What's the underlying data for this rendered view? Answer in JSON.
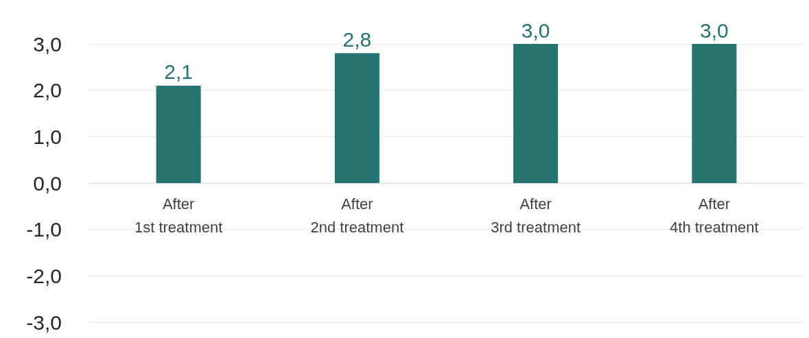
{
  "chart_data": {
    "type": "bar",
    "categories": [
      "After\n1st treatment",
      "After\n2nd treatment",
      "After\n3rd treatment",
      "After\n4th treatment"
    ],
    "values": [
      2.1,
      2.8,
      3.0,
      3.0
    ],
    "color": "#277370",
    "ylim": [
      -3,
      3
    ],
    "yticks": [
      {
        "value": -3,
        "label": "-3,0"
      },
      {
        "value": -2,
        "label": "-2,0"
      },
      {
        "value": -1,
        "label": "-1,0"
      },
      {
        "value": 0,
        "label": "0,0"
      },
      {
        "value": 1,
        "label": "1,0"
      },
      {
        "value": 2,
        "label": "2,0"
      },
      {
        "value": 3,
        "label": "3,0"
      }
    ],
    "grid": "y",
    "value_labels": [
      "2,1",
      "2,8",
      "3,0",
      "3,0"
    ]
  }
}
